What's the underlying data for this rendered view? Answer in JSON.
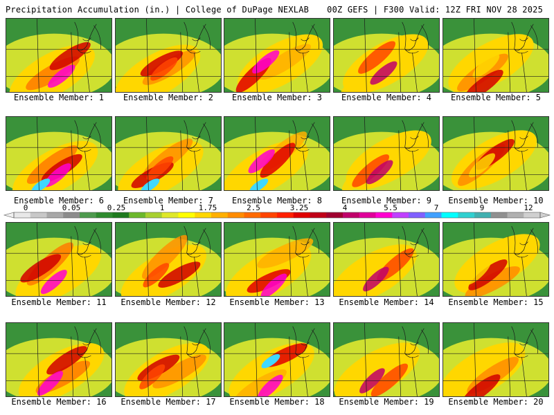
{
  "header": {
    "left": "Precipitation Accumulation (in.) | College of DuPage NEXLAB",
    "right": "00Z GEFS | F300 Valid: 12Z FRI NOV 28 2025"
  },
  "members": [
    {
      "label": "Ensemble Member: 1"
    },
    {
      "label": "Ensemble Member: 2"
    },
    {
      "label": "Ensemble Member: 3"
    },
    {
      "label": "Ensemble Member: 4"
    },
    {
      "label": "Ensemble Member: 5"
    },
    {
      "label": "Ensemble Member: 6"
    },
    {
      "label": "Ensemble Member: 7"
    },
    {
      "label": "Ensemble Member: 8"
    },
    {
      "label": "Ensemble Member: 9"
    },
    {
      "label": "Ensemble Member: 10"
    },
    {
      "label": "Ensemble Member: 11"
    },
    {
      "label": "Ensemble Member: 12"
    },
    {
      "label": "Ensemble Member: 13"
    },
    {
      "label": "Ensemble Member: 14"
    },
    {
      "label": "Ensemble Member: 15"
    },
    {
      "label": "Ensemble Member: 16"
    },
    {
      "label": "Ensemble Member: 17"
    },
    {
      "label": "Ensemble Member: 18"
    },
    {
      "label": "Ensemble Member: 19"
    },
    {
      "label": "Ensemble Member: 20"
    }
  ],
  "colorbar": {
    "labels": [
      "0",
      "0.05",
      "0.25",
      "1",
      "1.75",
      "2.5",
      "3.25",
      "4",
      "5.5",
      "7",
      "9",
      "12"
    ],
    "colors": [
      "#e8e8e8",
      "#c8c8c8",
      "#a8a8a8",
      "#8c8c8c",
      "#4e9a4e",
      "#2e8b2e",
      "#1e7a1e",
      "#6cb82c",
      "#a8d030",
      "#dfe82a",
      "#ffff00",
      "#ffd700",
      "#ffb000",
      "#ff8c00",
      "#ff6a00",
      "#ff4500",
      "#ff2000",
      "#e00000",
      "#c00018",
      "#a00030",
      "#c0006a",
      "#e0009a",
      "#ff00d0",
      "#c040ff",
      "#8060ff",
      "#40a0ff",
      "#00ffff",
      "#30d0d0",
      "#40b0b0",
      "#909090",
      "#b0b0b0",
      "#d0d0d0"
    ]
  }
}
